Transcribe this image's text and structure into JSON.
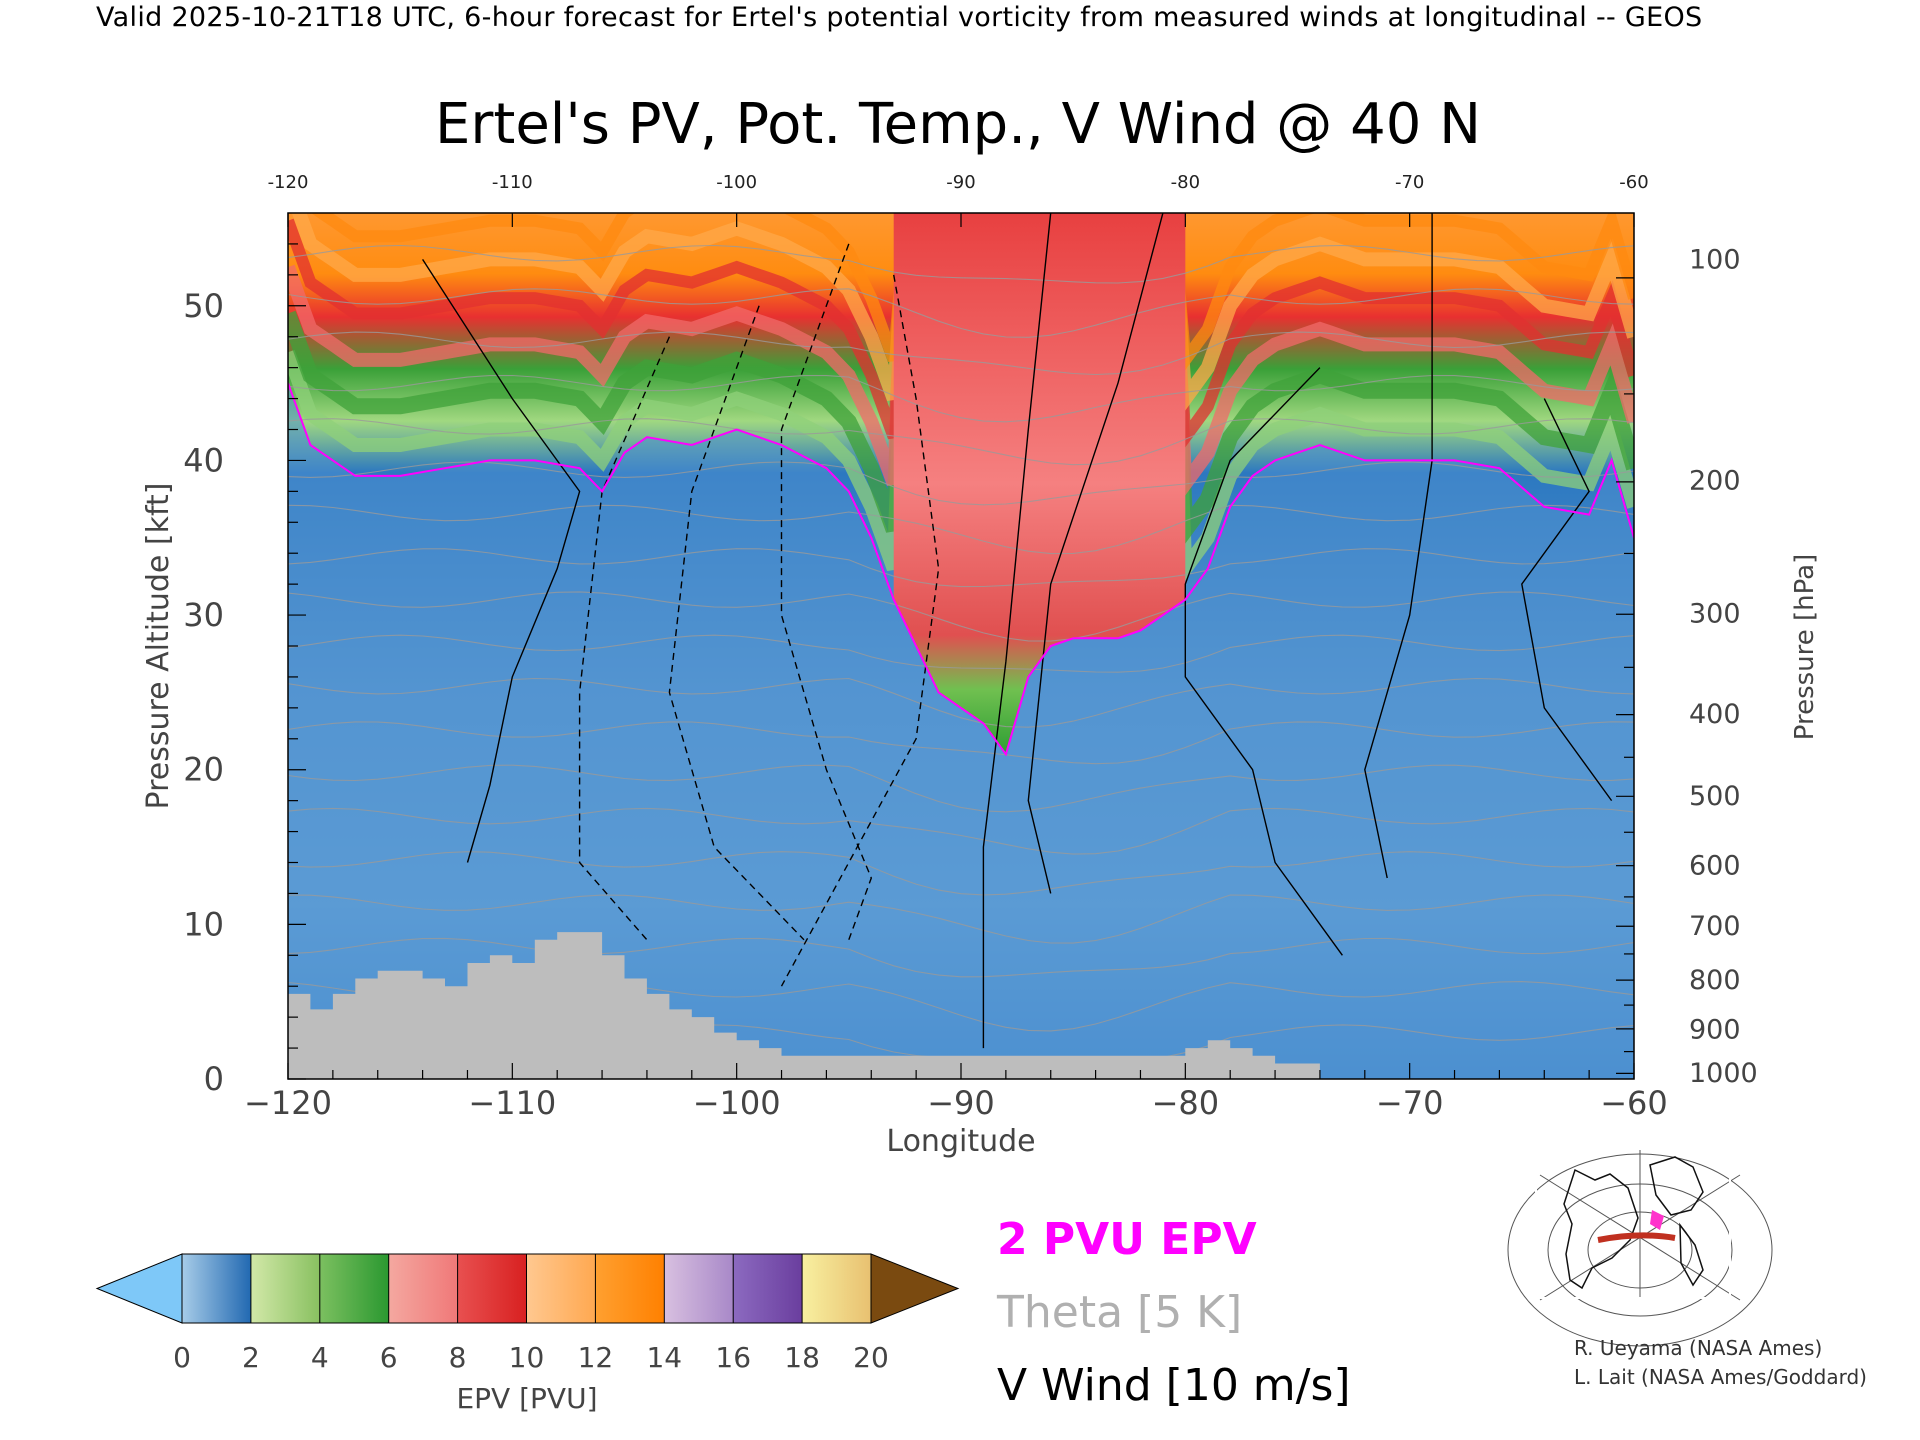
{
  "header_text": "Valid 2025-10-21T18 UTC, 6-hour forecast for Ertel's potential vorticity from measured winds at longitudinal -- GEOS",
  "chart_data": {
    "type": "heatmap",
    "title": "Ertel's PV, Pot. Temp., V Wind @ 40 N",
    "xlabel": "Longitude",
    "ylabel_left": "Pressure Altitude [kft]",
    "ylabel_right": "Pressure [hPa]",
    "xlim": [
      -120,
      -60
    ],
    "ylim_kft": [
      0,
      56
    ],
    "x_ticks": [
      -120,
      -110,
      -100,
      -90,
      -80,
      -70,
      -60
    ],
    "x_tick_labels": [
      "−120",
      "−110",
      "−100",
      "−90",
      "−80",
      "−70",
      "−60"
    ],
    "top_tick_labels": [
      "-120",
      "-110",
      "-100",
      "-90",
      "-80",
      "-70",
      "-60"
    ],
    "y_ticks_kft": [
      0,
      10,
      20,
      30,
      40,
      50
    ],
    "pressure_ticks": [
      {
        "hpa": 100,
        "kft": 53.0
      },
      {
        "hpa": 200,
        "kft": 38.7
      },
      {
        "hpa": 300,
        "kft": 30.1
      },
      {
        "hpa": 400,
        "kft": 23.6
      },
      {
        "hpa": 500,
        "kft": 18.3
      },
      {
        "hpa": 600,
        "kft": 13.8
      },
      {
        "hpa": 700,
        "kft": 9.9
      },
      {
        "hpa": 800,
        "kft": 6.4
      },
      {
        "hpa": 900,
        "kft": 3.2
      },
      {
        "hpa": 1000,
        "kft": 0.4
      }
    ],
    "tropopause_2pvu": {
      "lon": [
        -120,
        -119,
        -117,
        -115,
        -113,
        -111,
        -109,
        -107,
        -106,
        -105,
        -104,
        -102,
        -100,
        -98,
        -96,
        -95,
        -94,
        -93,
        -92,
        -91,
        -90,
        -89,
        -88,
        -87,
        -86,
        -85,
        -84,
        -83,
        -82,
        -81,
        -80,
        -79,
        -78,
        -77,
        -76,
        -75,
        -74,
        -72,
        -70,
        -68,
        -66,
        -64,
        -62,
        -61,
        -60
      ],
      "kft": [
        45,
        41,
        39,
        39,
        39.5,
        40,
        40,
        39.5,
        38,
        40.5,
        41.5,
        41,
        42,
        41,
        39.5,
        38,
        35,
        31,
        28,
        25,
        24,
        23,
        21,
        26,
        28,
        28.5,
        28.5,
        28.5,
        29,
        30,
        31,
        33,
        37,
        39,
        40,
        40.5,
        41,
        40,
        40,
        40,
        39.5,
        37,
        36.5,
        40,
        35
      ]
    },
    "terrain_kft": {
      "lon": [
        -120,
        -119,
        -118,
        -117,
        -116,
        -115,
        -114,
        -113,
        -112,
        -111,
        -110,
        -109,
        -108,
        -107,
        -106,
        -105,
        -104,
        -103,
        -102,
        -101,
        -100,
        -99,
        -98,
        -97,
        -96,
        -95,
        -94,
        -93,
        -92,
        -91,
        -90,
        -89,
        -88,
        -87,
        -86,
        -85,
        -84,
        -83,
        -82,
        -81,
        -80,
        -79,
        -78,
        -77,
        -76,
        -75,
        -74
      ],
      "kft": [
        5.5,
        4.5,
        5.5,
        6.5,
        7,
        7,
        6.5,
        6,
        7.5,
        8,
        7.5,
        9,
        9.5,
        9.5,
        8,
        6.5,
        5.5,
        4.5,
        4,
        3,
        2.5,
        2,
        1.5,
        1.5,
        1.5,
        1.5,
        1.5,
        1.5,
        1.5,
        1.5,
        1.5,
        1.5,
        1.5,
        1.5,
        1.5,
        1.5,
        1.5,
        1.5,
        1.5,
        1.5,
        2,
        2.5,
        2,
        1.5,
        1,
        1,
        0
      ]
    },
    "colorbar": {
      "label": "EPV [PVU]",
      "ticks": [
        "0",
        "2",
        "4",
        "6",
        "8",
        "10",
        "12",
        "14",
        "16",
        "18",
        "20"
      ],
      "colors": [
        [
          "#a7cce8",
          "#2168b1"
        ],
        [
          "#d2e8a8",
          "#88c060"
        ],
        [
          "#7cc060",
          "#2a9830"
        ],
        [
          "#f4a8a0",
          "#f07878"
        ],
        [
          "#e85050",
          "#d82020"
        ],
        [
          "#ffc890",
          "#ffa850"
        ],
        [
          "#ffa030",
          "#ff8000"
        ],
        [
          "#d8c0e0",
          "#a888c8"
        ],
        [
          "#8c6ac0",
          "#6a3e9e"
        ],
        [
          "#f8f0a0",
          "#e8c070"
        ],
        "#7a4a10"
      ],
      "under_color": "#7ec8f8"
    },
    "legend": [
      {
        "label": "2 PVU EPV",
        "color": "#ff00ff"
      },
      {
        "label": "Theta [5 K]",
        "color": "#b0b0b0"
      },
      {
        "label": "V Wind [10 m/s]",
        "color": "#000000"
      }
    ]
  },
  "credits": [
    "R. Ueyama (NASA Ames)",
    "L. Lait (NASA Ames/Goddard)"
  ]
}
